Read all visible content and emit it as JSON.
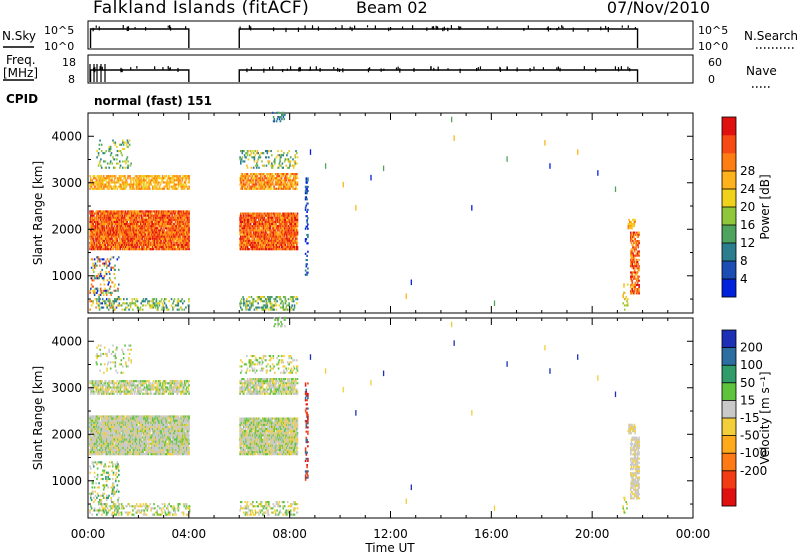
{
  "header": {
    "title": "Falkland Islands (fitACF)",
    "beam": "Beam 02",
    "date": "07/Nov/2010"
  },
  "nsky_panel": {
    "left_label": "N.Sky",
    "right_label": "N.Search",
    "left_ticks": [
      "10^5",
      "10^0"
    ],
    "right_ticks": [
      "10^5",
      "10^0"
    ]
  },
  "freq_panel": {
    "left_label": "Freq. [MHz]",
    "right_label": "Nave",
    "left_ticks": [
      "18",
      "8"
    ],
    "right_ticks": [
      "60",
      "0"
    ]
  },
  "cpid_panel": {
    "label": "CPID",
    "value": "normal (fast) 151"
  },
  "chart_data": [
    {
      "type": "heatmap",
      "name": "power",
      "xlabel": "",
      "ylabel": "Slant Range [km]",
      "x_unit": "hours UT",
      "xlim": [
        0,
        24
      ],
      "ylim": [
        200,
        4500
      ],
      "yticks": [
        1000,
        2000,
        3000,
        4000
      ],
      "observing_intervals_hours": [
        [
          0,
          4
        ],
        [
          6,
          8.7
        ],
        [
          8.7,
          21.8
        ]
      ],
      "colorbar": {
        "label": "Power [dB]",
        "ticks": [
          "4",
          "8",
          "12",
          "16",
          "20",
          "24",
          "28"
        ],
        "colors": [
          "#0022dd",
          "#1c4db5",
          "#2c7e8f",
          "#4ea45e",
          "#8fc63a",
          "#f0d21c",
          "#ffb21c",
          "#ff7e14",
          "#f64b14",
          "#e01010"
        ]
      }
    },
    {
      "type": "heatmap",
      "name": "velocity",
      "xlabel": "Time UT",
      "ylabel": "Slant Range [km]",
      "x_unit": "hours UT",
      "xlim": [
        0,
        24
      ],
      "ylim": [
        200,
        4500
      ],
      "yticks": [
        1000,
        2000,
        3000,
        4000
      ],
      "xticks": [
        "00:00",
        "04:00",
        "08:00",
        "12:00",
        "16:00",
        "20:00",
        "00:00"
      ],
      "colorbar": {
        "label": "Velocity [m s⁻¹]",
        "ticks": [
          "200",
          "100",
          "50",
          "15",
          "-15",
          "-50",
          "-100",
          "-200"
        ],
        "colors": [
          "#1c2fb5",
          "#2c6ea0",
          "#2f9c6a",
          "#5ec43c",
          "#c9c9c9",
          "#f2cf3a",
          "#ffaa1c",
          "#ff7a14",
          "#f23c14",
          "#e01010"
        ]
      }
    }
  ]
}
